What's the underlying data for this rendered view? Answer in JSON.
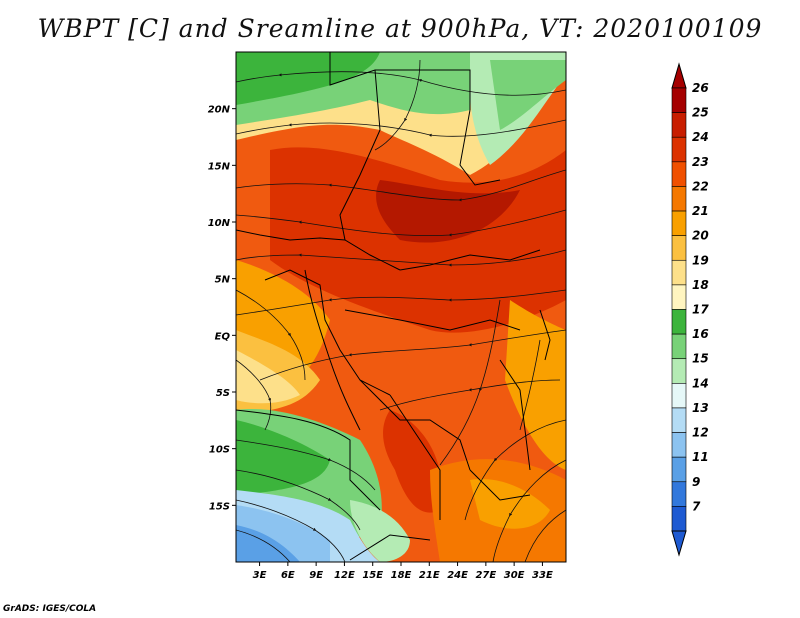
{
  "title": "WBPT [C] and Sreamline at 900hPa, VT: 2020100109",
  "credit": "GrADS: IGES/COLA",
  "map": {
    "lat_labels": [
      "20N",
      "15N",
      "10N",
      "5N",
      "EQ",
      "5S",
      "10S",
      "15S"
    ],
    "lon_labels": [
      "3E",
      "6E",
      "9E",
      "12E",
      "15E",
      "18E",
      "21E",
      "24E",
      "27E",
      "30E",
      "33E"
    ],
    "lat_values": [
      20,
      15,
      10,
      5,
      0,
      -5,
      -10,
      -15
    ],
    "lon_values": [
      3,
      6,
      9,
      12,
      15,
      18,
      21,
      24,
      27,
      30,
      33
    ],
    "lat_range": [
      -20,
      25
    ],
    "lon_range": [
      0.5,
      35.5
    ]
  },
  "colorbar": {
    "labels": [
      "26",
      "25",
      "24",
      "23",
      "22",
      "21",
      "20",
      "19",
      "18",
      "17",
      "16",
      "15",
      "14",
      "13",
      "12",
      "11",
      "9",
      "7"
    ],
    "colors": [
      "#a50000",
      "#c81e00",
      "#dc3200",
      "#f05000",
      "#f57800",
      "#f9a000",
      "#fbc040",
      "#fde08a",
      "#fff5c0",
      "#3cb43c",
      "#78d278",
      "#b4ebb4",
      "#e6f8f8",
      "#b4dcf5",
      "#8cc3f0",
      "#5aa0e6",
      "#3278dc",
      "#1e5ad2"
    ]
  }
}
